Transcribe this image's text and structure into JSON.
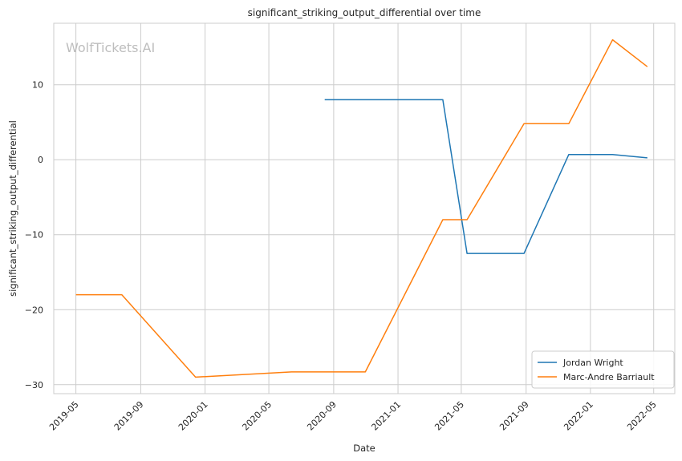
{
  "chart_data": {
    "type": "line",
    "title": "significant_striking_output_differential over time",
    "xlabel": "Date",
    "ylabel": "significant_striking_output_differential",
    "watermark": "WolfTickets.AI",
    "xlim": [
      "2019-03-20",
      "2022-06-10"
    ],
    "ylim": [
      -31.2,
      18.2
    ],
    "x_ticks": [
      "2019-05",
      "2019-09",
      "2020-01",
      "2020-05",
      "2020-09",
      "2021-01",
      "2021-05",
      "2021-09",
      "2022-01",
      "2022-05"
    ],
    "y_ticks": [
      -30,
      -20,
      -10,
      0,
      10
    ],
    "grid": true,
    "legend_position": "lower-right",
    "series": [
      {
        "name": "Jordan Wright",
        "color": "#1f77b4",
        "points": [
          {
            "x": "2020-08-15",
            "y": 8.0
          },
          {
            "x": "2021-03-27",
            "y": 8.0
          },
          {
            "x": "2021-05-12",
            "y": -12.5
          },
          {
            "x": "2021-08-28",
            "y": -12.5
          },
          {
            "x": "2021-11-21",
            "y": 0.7
          },
          {
            "x": "2022-02-12",
            "y": 0.7
          },
          {
            "x": "2022-04-19",
            "y": 0.25
          }
        ]
      },
      {
        "name": "Marc-Andre Barriault",
        "color": "#ff7f0e",
        "points": [
          {
            "x": "2019-05-01",
            "y": -18.0
          },
          {
            "x": "2019-07-27",
            "y": -18.0
          },
          {
            "x": "2019-12-14",
            "y": -29.0
          },
          {
            "x": "2020-06-13",
            "y": -28.3
          },
          {
            "x": "2020-10-31",
            "y": -28.3
          },
          {
            "x": "2021-03-27",
            "y": -8.0
          },
          {
            "x": "2021-05-12",
            "y": -8.0
          },
          {
            "x": "2021-08-28",
            "y": 4.8
          },
          {
            "x": "2021-11-21",
            "y": 4.8
          },
          {
            "x": "2022-02-12",
            "y": 16.0
          },
          {
            "x": "2022-04-19",
            "y": 12.4
          }
        ]
      }
    ]
  }
}
